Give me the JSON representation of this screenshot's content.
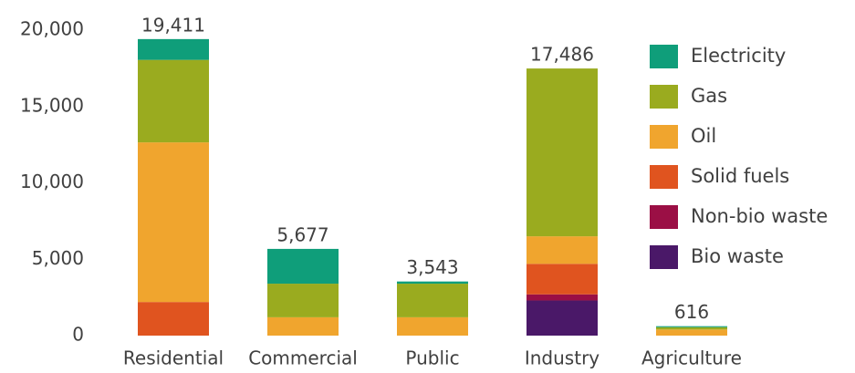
{
  "chart_data": {
    "type": "stacked_bar",
    "categories": [
      "Residential",
      "Commercial",
      "Public",
      "Industry",
      "Agriculture"
    ],
    "series": [
      {
        "name": "Bio waste",
        "color": "#4a1868",
        "values": [
          0,
          0,
          0,
          2300,
          0
        ]
      },
      {
        "name": "Non-bio waste",
        "color": "#9b0f45",
        "values": [
          0,
          0,
          0,
          400,
          0
        ]
      },
      {
        "name": "Solid fuels",
        "color": "#e0541f",
        "values": [
          2200,
          0,
          0,
          2000,
          0
        ]
      },
      {
        "name": "Oil",
        "color": "#f0a52e",
        "values": [
          10450,
          1200,
          1200,
          1800,
          400
        ]
      },
      {
        "name": "Gas",
        "color": "#9aab1f",
        "values": [
          5400,
          2200,
          2200,
          10986,
          150
        ]
      },
      {
        "name": "Electricity",
        "color": "#0f9e7a",
        "values": [
          1361,
          2277,
          143,
          0,
          66
        ]
      }
    ],
    "totals": [
      19411,
      5677,
      3543,
      17486,
      616
    ],
    "total_labels": [
      "19,411",
      "5,677",
      "3,543",
      "17,486",
      "616"
    ],
    "ylim": [
      0,
      20000
    ],
    "yticks": [
      0,
      {
        "value": 5000,
        "label": "5,000"
      },
      {
        "value": 10000,
        "label": "10,000"
      },
      {
        "value": 15000,
        "label": "15,000"
      },
      {
        "value": 20000,
        "label": "20,000"
      }
    ],
    "grid": false,
    "legend": "right"
  }
}
